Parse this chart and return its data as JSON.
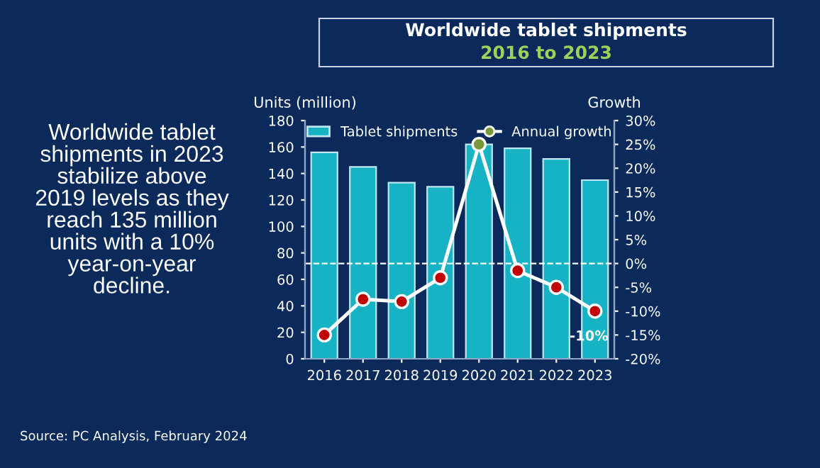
{
  "chart_data": {
    "type": "bar",
    "title": "Worldwide tablet shipments",
    "subtitle": "2016 to 2023",
    "ylabel": "Units (million)",
    "y2label": "Growth",
    "categories": [
      "2016",
      "2017",
      "2018",
      "2019",
      "2020",
      "2021",
      "2022",
      "2023"
    ],
    "series": [
      {
        "name": "Tablet shipments",
        "color": "#17b3c4",
        "values": [
          156,
          145,
          133,
          130,
          162,
          159,
          151,
          135
        ]
      },
      {
        "name": "Annual growth",
        "type": "line",
        "axis": "y2",
        "color": "#ffffff",
        "colors": [
          "#c00000",
          "#c00000",
          "#c00000",
          "#c00000",
          "#7a9a3a",
          "#c00000",
          "#c00000",
          "#c00000"
        ],
        "marker": "circle",
        "values": [
          -15,
          -7.5,
          -8,
          -3,
          25,
          -1.5,
          -5,
          -10
        ],
        "value_labels": [
          null,
          null,
          null,
          null,
          null,
          null,
          null,
          "-10%"
        ]
      }
    ],
    "ylim": [
      0,
      180
    ],
    "yticks": [
      0,
      20,
      40,
      60,
      80,
      100,
      120,
      140,
      160,
      180
    ],
    "y2lim": [
      -20,
      30
    ],
    "y2ticks": [
      {
        "value": -20,
        "label": "-20%"
      },
      {
        "value": -15,
        "label": "-15%"
      },
      {
        "value": -10,
        "label": "-10%"
      },
      {
        "value": -5,
        "label": "-5%"
      },
      {
        "value": 0,
        "label": "0%"
      },
      {
        "value": 5,
        "label": "5%"
      },
      {
        "value": 10,
        "label": "10%"
      },
      {
        "value": 15,
        "label": "15%"
      },
      {
        "value": 20,
        "label": "20%"
      },
      {
        "value": 25,
        "label": "25%"
      },
      {
        "value": 30,
        "label": "30%"
      }
    ],
    "ref_lines": [
      {
        "axis": "y2",
        "value": 0,
        "color": "#ffffff",
        "line_style": "dashed"
      }
    ],
    "legend": "top",
    "grid": false,
    "annotations": [
      "Worldwide tablet\nshipments in 2023\nstabilize above\n2019 levels as they\nreach 135 million\nunits with a 10%\nyear-on-year\ndecline.",
      "Source: PC Analysis, February 2024"
    ]
  }
}
